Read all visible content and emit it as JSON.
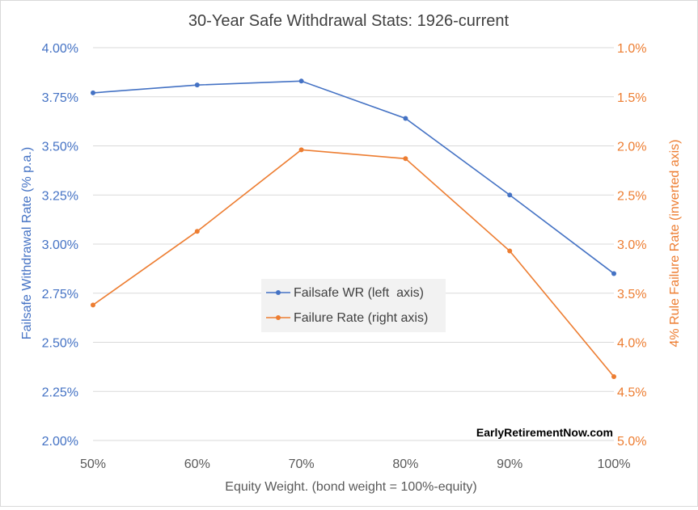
{
  "chart_data": {
    "type": "line",
    "title": "30-Year Safe Withdrawal Stats: 1926-current",
    "xlabel": "Equity Weight. (bond weight = 100%-equity)",
    "ylabel_left": "Failsafe Withdrawal Rate (% p.a.)",
    "ylabel_right": "4% Rule Failure Rate (inverted axis)",
    "categories": [
      "50%",
      "60%",
      "70%",
      "80%",
      "90%",
      "100%"
    ],
    "y_left_ticks": [
      "4.00%",
      "3.75%",
      "3.50%",
      "3.25%",
      "3.00%",
      "2.75%",
      "2.50%",
      "2.25%",
      "2.00%"
    ],
    "y_right_ticks": [
      "1.0%",
      "1.5%",
      "2.0%",
      "2.5%",
      "3.0%",
      "3.5%",
      "4.0%",
      "4.5%",
      "5.0%"
    ],
    "y_left_lim": [
      2.0,
      4.0
    ],
    "y_right_lim": [
      1.0,
      5.0
    ],
    "y_right_inverted": true,
    "grid": "horizontal",
    "legend_placement": "center",
    "series": [
      {
        "name": "Failsafe WR (left  axis)",
        "axis": "left",
        "color": "#4472c4",
        "values": [
          3.77,
          3.81,
          3.83,
          3.64,
          3.25,
          2.85
        ]
      },
      {
        "name": "Failure Rate (right axis)",
        "axis": "right",
        "color": "#ed7d31",
        "values": [
          3.62,
          2.87,
          2.04,
          2.13,
          3.07,
          4.35
        ]
      }
    ],
    "watermark": "EarlyRetirementNow.com"
  }
}
